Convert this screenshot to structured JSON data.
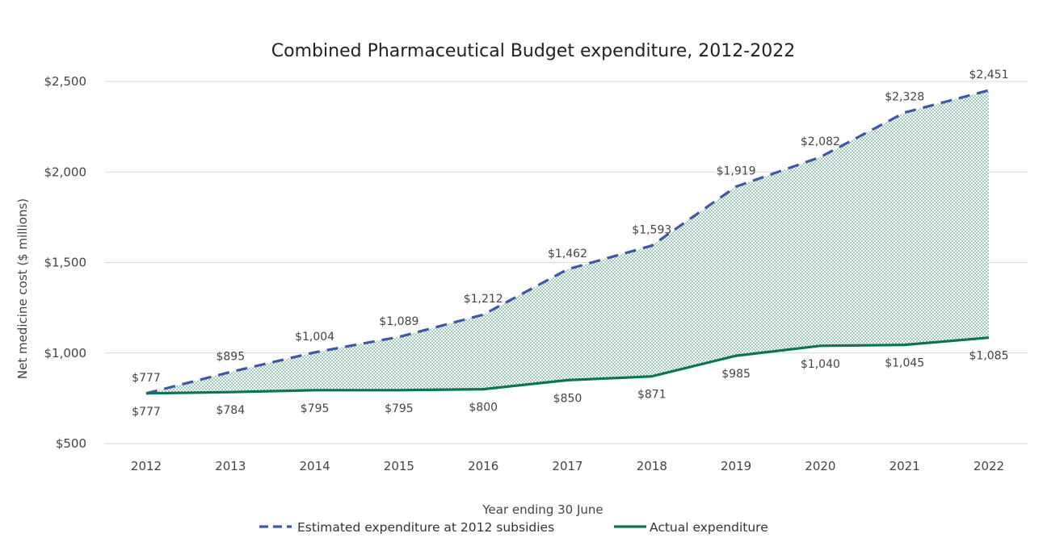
{
  "chart_data": {
    "type": "line",
    "title": "Combined Pharmaceutical Budget expenditure, 2012-2022",
    "xlabel": "Year ending 30 June",
    "ylabel": "Net medicine cost ($ millions)",
    "categories": [
      "2012",
      "2013",
      "2014",
      "2015",
      "2016",
      "2017",
      "2018",
      "2019",
      "2020",
      "2021",
      "2022"
    ],
    "ylim": [
      500,
      2500
    ],
    "yticks": [
      500,
      1000,
      1500,
      2000,
      2500
    ],
    "ytick_labels": [
      "$500",
      "$1,000",
      "$1,500",
      "$2,000",
      "$2,500"
    ],
    "grid": true,
    "legend_position": "bottom",
    "shaded_area_between_series": true,
    "series": [
      {
        "name": "Estimated expenditure at 2012 subsidies",
        "style": "dashed",
        "color": "#3f57a5",
        "values": [
          777,
          895,
          1004,
          1089,
          1212,
          1462,
          1593,
          1919,
          2082,
          2328,
          2451
        ],
        "labels": [
          "$777",
          "$895",
          "$1,004",
          "$1,089",
          "$1,212",
          "$1,462",
          "$1,593",
          "$1,919",
          "$2,082",
          "$2,328",
          "$2,451"
        ]
      },
      {
        "name": "Actual expenditure",
        "style": "solid",
        "color": "#0f7350",
        "values": [
          777,
          784,
          795,
          795,
          800,
          850,
          871,
          985,
          1040,
          1045,
          1085
        ],
        "labels": [
          "$777",
          "$784",
          "$795",
          "$795",
          "$800",
          "$850",
          "$871",
          "$985",
          "$1,040",
          "$1,045",
          "$1,085"
        ]
      }
    ],
    "fill_color": "#5aa98a"
  }
}
